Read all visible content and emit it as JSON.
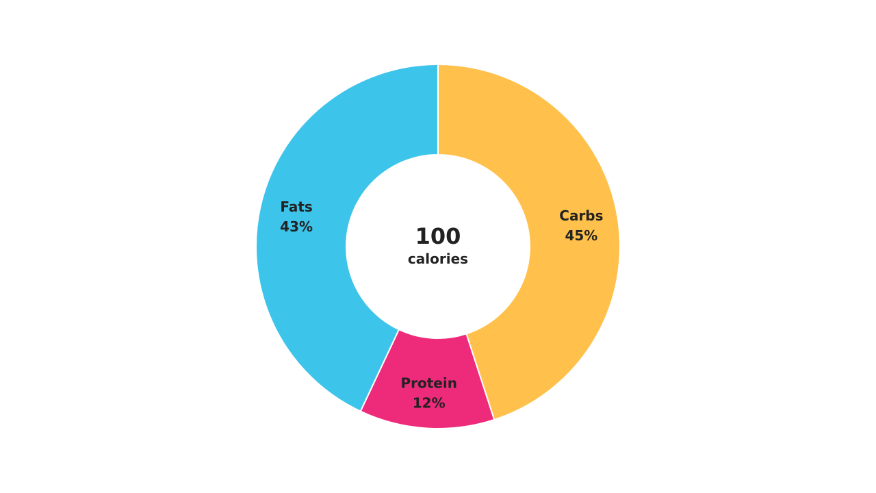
{
  "chart_data": {
    "type": "pie",
    "title": "",
    "donut": true,
    "center_value": "100",
    "center_label": "calories",
    "slices": [
      {
        "name": "Carbs",
        "value": 45,
        "label": "45%",
        "color": "#FFC14B"
      },
      {
        "name": "Protein",
        "value": 12,
        "label": "12%",
        "color": "#EE2A7B"
      },
      {
        "name": "Fats",
        "value": 43,
        "label": "43%",
        "color": "#3DC4EA"
      }
    ]
  }
}
